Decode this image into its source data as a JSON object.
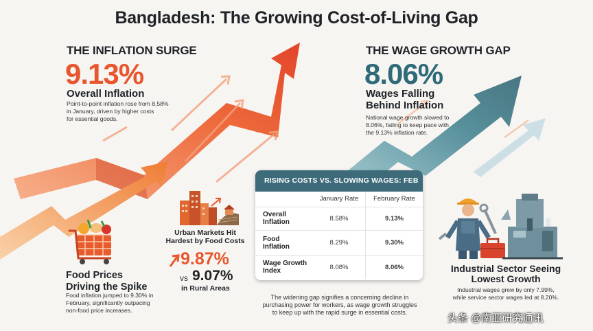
{
  "title": "Bangladesh: The Growing Cost-of-Living Gap",
  "inflation": {
    "heading": "THE INFLATION SURGE",
    "value": "9.13%",
    "label": "Overall Inflation",
    "desc": [
      "Point-to-point inflation rose from 8.58%",
      "in January, driven by higher costs",
      "for essential goods."
    ]
  },
  "wages": {
    "heading": "THE WAGE GROWTH GAP",
    "value": "8.06%",
    "label": [
      "Wages Falling",
      "Behind Inflation"
    ],
    "desc": [
      "National wage growth slowed to",
      "8.06%, failing to keep pace with",
      "the 9.13% inflation rate."
    ]
  },
  "table": {
    "header": "RISING COSTS VS. SLOWING WAGES: FEB",
    "columns": [
      "January Rate",
      "February Rate"
    ],
    "rows": [
      {
        "label": [
          "Overall",
          "Inflation"
        ],
        "jan": "8.58%",
        "feb": "9.13%"
      },
      {
        "label": [
          "Food",
          "Inflation"
        ],
        "jan": "8.29%",
        "feb": "9.30%"
      },
      {
        "label": [
          "Wage Growth",
          "Index"
        ],
        "jan": "8.08%",
        "feb": "8.06%"
      }
    ]
  },
  "food": {
    "label": [
      "Food Prices",
      "Driving the Spike"
    ],
    "desc": [
      "Food inflation jumped to 9.30% in",
      "February, significantly outpacing",
      "non-food price increases."
    ]
  },
  "urban": {
    "label": [
      "Urban Markets Hit",
      "Hardest by Food Costs"
    ],
    "urban_value": "9.87%",
    "vs": "vs",
    "rural_value": "9.07%",
    "rural_label": "in Rural Areas"
  },
  "industrial": {
    "label": [
      "Industrial Sector Seeing",
      "Lowest Growth"
    ],
    "desc": [
      "Industrial wages grew by only 7.99%,",
      "while service sector wages led at 8.20%."
    ]
  },
  "footer": [
    "The widening gap signifies a concerning decline in",
    "purchasing power for workers, as wage growth struggles",
    "to keep up with the rapid surge in essential costs."
  ],
  "watermark": "头条 @南亚研究通讯",
  "colors": {
    "accent_red": "#e8562d",
    "accent_teal": "#2f6a78",
    "table_header": "#3d6b7a"
  },
  "icons": [
    "shopping-cart-icon",
    "city-buildings-icon",
    "worker-icon",
    "factory-machine-icon",
    "up-arrow-icon"
  ]
}
